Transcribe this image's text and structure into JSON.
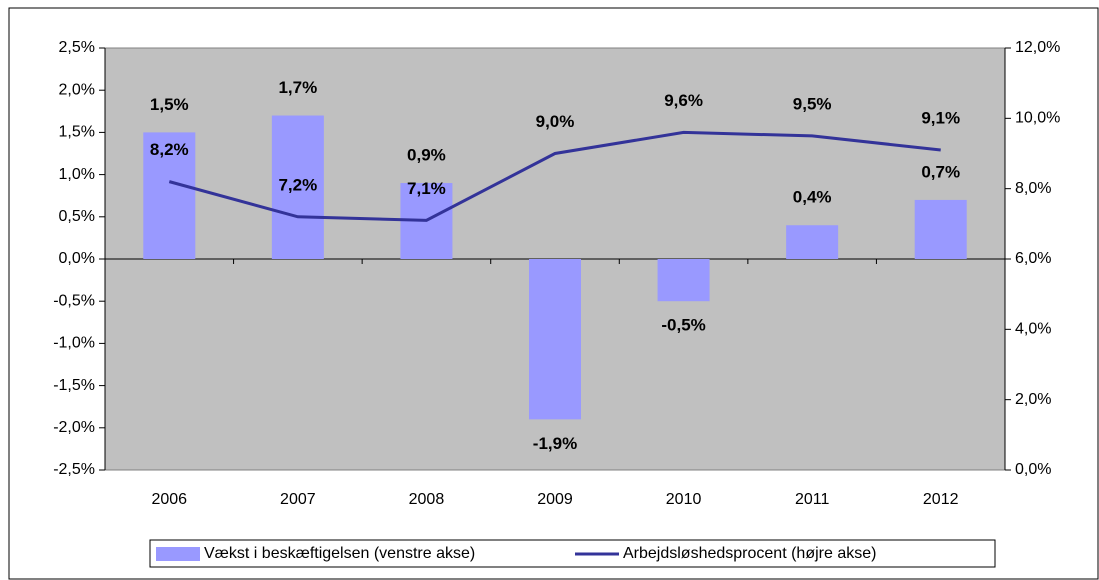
{
  "chart_data": {
    "type": "bar_line",
    "categories": [
      "2006",
      "2007",
      "2008",
      "2009",
      "2010",
      "2011",
      "2012"
    ],
    "series": [
      {
        "name": "Vækst i beskæftigelsen (venstre akse)",
        "type": "bar",
        "color": "#9999ff",
        "values": [
          1.5,
          1.7,
          0.9,
          -1.9,
          -0.5,
          0.4,
          0.7
        ],
        "value_labels": [
          "1,5%",
          "1,7%",
          "0,9%",
          "-1,9%",
          "-0,5%",
          "0,4%",
          "0,7%"
        ]
      },
      {
        "name": "Arbejdsløshedsprocent (højre akse)",
        "type": "line",
        "axis": "y2",
        "color": "#333399",
        "values": [
          8.2,
          7.2,
          7.1,
          9.0,
          9.6,
          9.5,
          9.1
        ],
        "value_labels": [
          "8,2%",
          "7,2%",
          "7,1%",
          "9,0%",
          "9,6%",
          "9,5%",
          "9,1%"
        ]
      }
    ],
    "ylim": [
      -2.5,
      2.5
    ],
    "yticks": [
      {
        "value": -2.5,
        "label": "-2,5%"
      },
      {
        "value": -2,
        "label": "-2,0%"
      },
      {
        "value": -1.5,
        "label": "-1,5%"
      },
      {
        "value": -1,
        "label": "-1,0%"
      },
      {
        "value": -0.5,
        "label": "-0,5%"
      },
      {
        "value": 0,
        "label": "0,0%"
      },
      {
        "value": 0.5,
        "label": "0,5%"
      },
      {
        "value": 1,
        "label": "1,0%"
      },
      {
        "value": 1.5,
        "label": "1,5%"
      },
      {
        "value": 2,
        "label": "2,0%"
      },
      {
        "value": 2.5,
        "label": "2,5%"
      }
    ],
    "y2lim": [
      0,
      12
    ],
    "y2ticks": [
      {
        "value": 0,
        "label": "0,0%"
      },
      {
        "value": 2,
        "label": "2,0%"
      },
      {
        "value": 4,
        "label": "4,0%"
      },
      {
        "value": 6,
        "label": "6,0%"
      },
      {
        "value": 8,
        "label": "8,0%"
      },
      {
        "value": 10,
        "label": "10,0%"
      },
      {
        "value": 12,
        "label": "12,0%"
      }
    ],
    "legend": "bottom",
    "plot_background": "#c0c0c0"
  }
}
